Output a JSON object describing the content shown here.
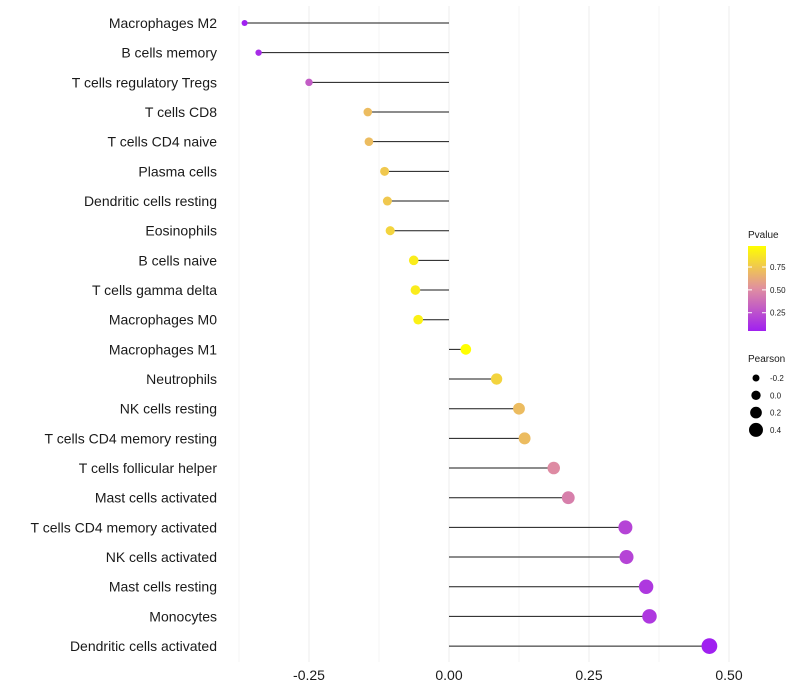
{
  "chart_data": {
    "type": "lollipop",
    "title": "",
    "xlabel": "",
    "ylabel": "",
    "xlim": [
      -0.375,
      0.5
    ],
    "xticks": [
      -0.25,
      0.0,
      0.25,
      0.5
    ],
    "xtick_labels": [
      "-0.25",
      "0.00",
      "0.25",
      "0.50"
    ],
    "grid": true,
    "series": [
      {
        "category": "Macrophages M2",
        "value": -0.365,
        "pvalue": 0.05
      },
      {
        "category": "B cells memory",
        "value": -0.34,
        "pvalue": 0.1
      },
      {
        "category": "T cells regulatory  Tregs",
        "value": -0.25,
        "pvalue": 0.3
      },
      {
        "category": "T cells CD8",
        "value": -0.145,
        "pvalue": 0.7
      },
      {
        "category": "T cells CD4 naive",
        "value": -0.143,
        "pvalue": 0.7
      },
      {
        "category": "Plasma cells",
        "value": -0.115,
        "pvalue": 0.75
      },
      {
        "category": "Dendritic cells resting",
        "value": -0.11,
        "pvalue": 0.75
      },
      {
        "category": "Eosinophils",
        "value": -0.105,
        "pvalue": 0.8
      },
      {
        "category": "B cells naive",
        "value": -0.063,
        "pvalue": 0.9
      },
      {
        "category": "T cells gamma delta",
        "value": -0.06,
        "pvalue": 0.9
      },
      {
        "category": "Macrophages M0",
        "value": -0.055,
        "pvalue": 0.92
      },
      {
        "category": "Macrophages M1",
        "value": 0.03,
        "pvalue": 0.98
      },
      {
        "category": "Neutrophils",
        "value": 0.085,
        "pvalue": 0.8
      },
      {
        "category": "NK cells resting",
        "value": 0.125,
        "pvalue": 0.7
      },
      {
        "category": "T cells CD4 memory resting",
        "value": 0.135,
        "pvalue": 0.7
      },
      {
        "category": "T cells follicular helper",
        "value": 0.187,
        "pvalue": 0.5
      },
      {
        "category": "Mast cells activated",
        "value": 0.213,
        "pvalue": 0.45
      },
      {
        "category": "T cells CD4 memory activated",
        "value": 0.315,
        "pvalue": 0.2
      },
      {
        "category": "NK cells activated",
        "value": 0.317,
        "pvalue": 0.2
      },
      {
        "category": "Mast cells resting",
        "value": 0.352,
        "pvalue": 0.15
      },
      {
        "category": "Monocytes",
        "value": 0.358,
        "pvalue": 0.15
      },
      {
        "category": "Dendritic cells activated",
        "value": 0.465,
        "pvalue": 0.05
      }
    ],
    "legend": {
      "color_title": "Pvalue",
      "color_ticks": [
        0.75,
        0.5,
        0.25
      ],
      "color_tick_labels": [
        "0.75",
        "0.50",
        "0.25"
      ],
      "color_range": [
        0.05,
        0.98
      ],
      "color_low": "#a020f0",
      "color_mid": "#e08fa0",
      "color_high": "#ffff00",
      "size_title": "Pearson",
      "size_values": [
        -0.2,
        0.0,
        0.2,
        0.4
      ],
      "size_labels": [
        "-0.2",
        "0.0",
        "0.2",
        "0.4"
      ],
      "placement": "right"
    }
  }
}
